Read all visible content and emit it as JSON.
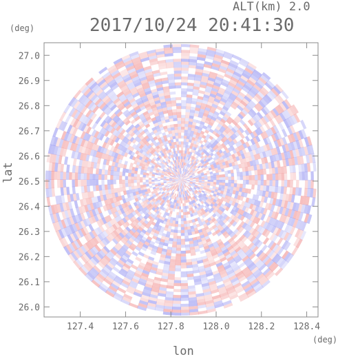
{
  "header": {
    "altitude": "ALT(km) 2.0",
    "timestamp": "2017/10/24 20:41:30"
  },
  "chart_data": {
    "type": "heatmap",
    "title": "2017/10/24 20:41:30",
    "subtitle": "ALT(km) 2.0",
    "xlabel": "lon",
    "ylabel": "lat",
    "x_unit": "(deg)",
    "y_unit": "(deg)",
    "xlim": [
      127.24,
      128.45
    ],
    "ylim": [
      25.96,
      27.05
    ],
    "x_ticks": [
      "127.4",
      "127.6",
      "127.8",
      "128.0",
      "128.2",
      "128.4"
    ],
    "y_ticks": [
      "26.0",
      "26.1",
      "26.2",
      "26.3",
      "26.4",
      "26.5",
      "26.6",
      "26.7",
      "26.8",
      "26.9",
      "27.0"
    ],
    "x_tick_values": [
      127.4,
      127.6,
      127.8,
      128.0,
      128.2,
      128.4
    ],
    "y_tick_values": [
      26.0,
      26.1,
      26.2,
      26.3,
      26.4,
      26.5,
      26.6,
      26.7,
      26.8,
      26.9,
      27.0
    ],
    "circle_center": [
      127.845,
      26.505
    ],
    "circle_radius_lat": 0.54,
    "colormap": {
      "negative": "#8c8cf0",
      "positive": "#f08c8c",
      "zero": "#ffffff"
    },
    "grid": false
  }
}
